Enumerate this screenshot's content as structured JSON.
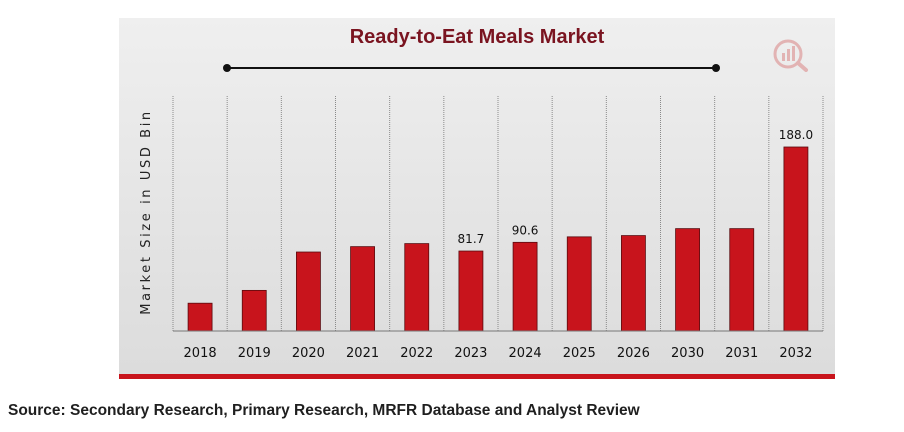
{
  "source": "Source: Secondary Research, Primary Research, MRFR Database and Analyst Review",
  "colors": {
    "bar": "#c8141c",
    "title": "#7a1420",
    "accent": "#c8141c"
  },
  "icons": {
    "logo": "bar-chart-logo"
  },
  "chart_data": {
    "type": "bar",
    "title": "Ready-to-Eat Meals Market",
    "xlabel": "",
    "ylabel": "Market Size in USD Bin",
    "categories": [
      "2018",
      "2019",
      "2020",
      "2021",
      "2022",
      "2023",
      "2024",
      "2025",
      "2026",
      "2030",
      "2031",
      "2032"
    ],
    "values": [
      28.4,
      41.5,
      80.7,
      86.2,
      89.3,
      81.7,
      90.6,
      96.2,
      97.5,
      104.6,
      104.6,
      188.0
    ],
    "data_labels": [
      "",
      "",
      "",
      "",
      "",
      "81.7",
      "90.6",
      "",
      "",
      "",
      "",
      "188.0"
    ],
    "grid": "vertical",
    "legend": "none"
  }
}
